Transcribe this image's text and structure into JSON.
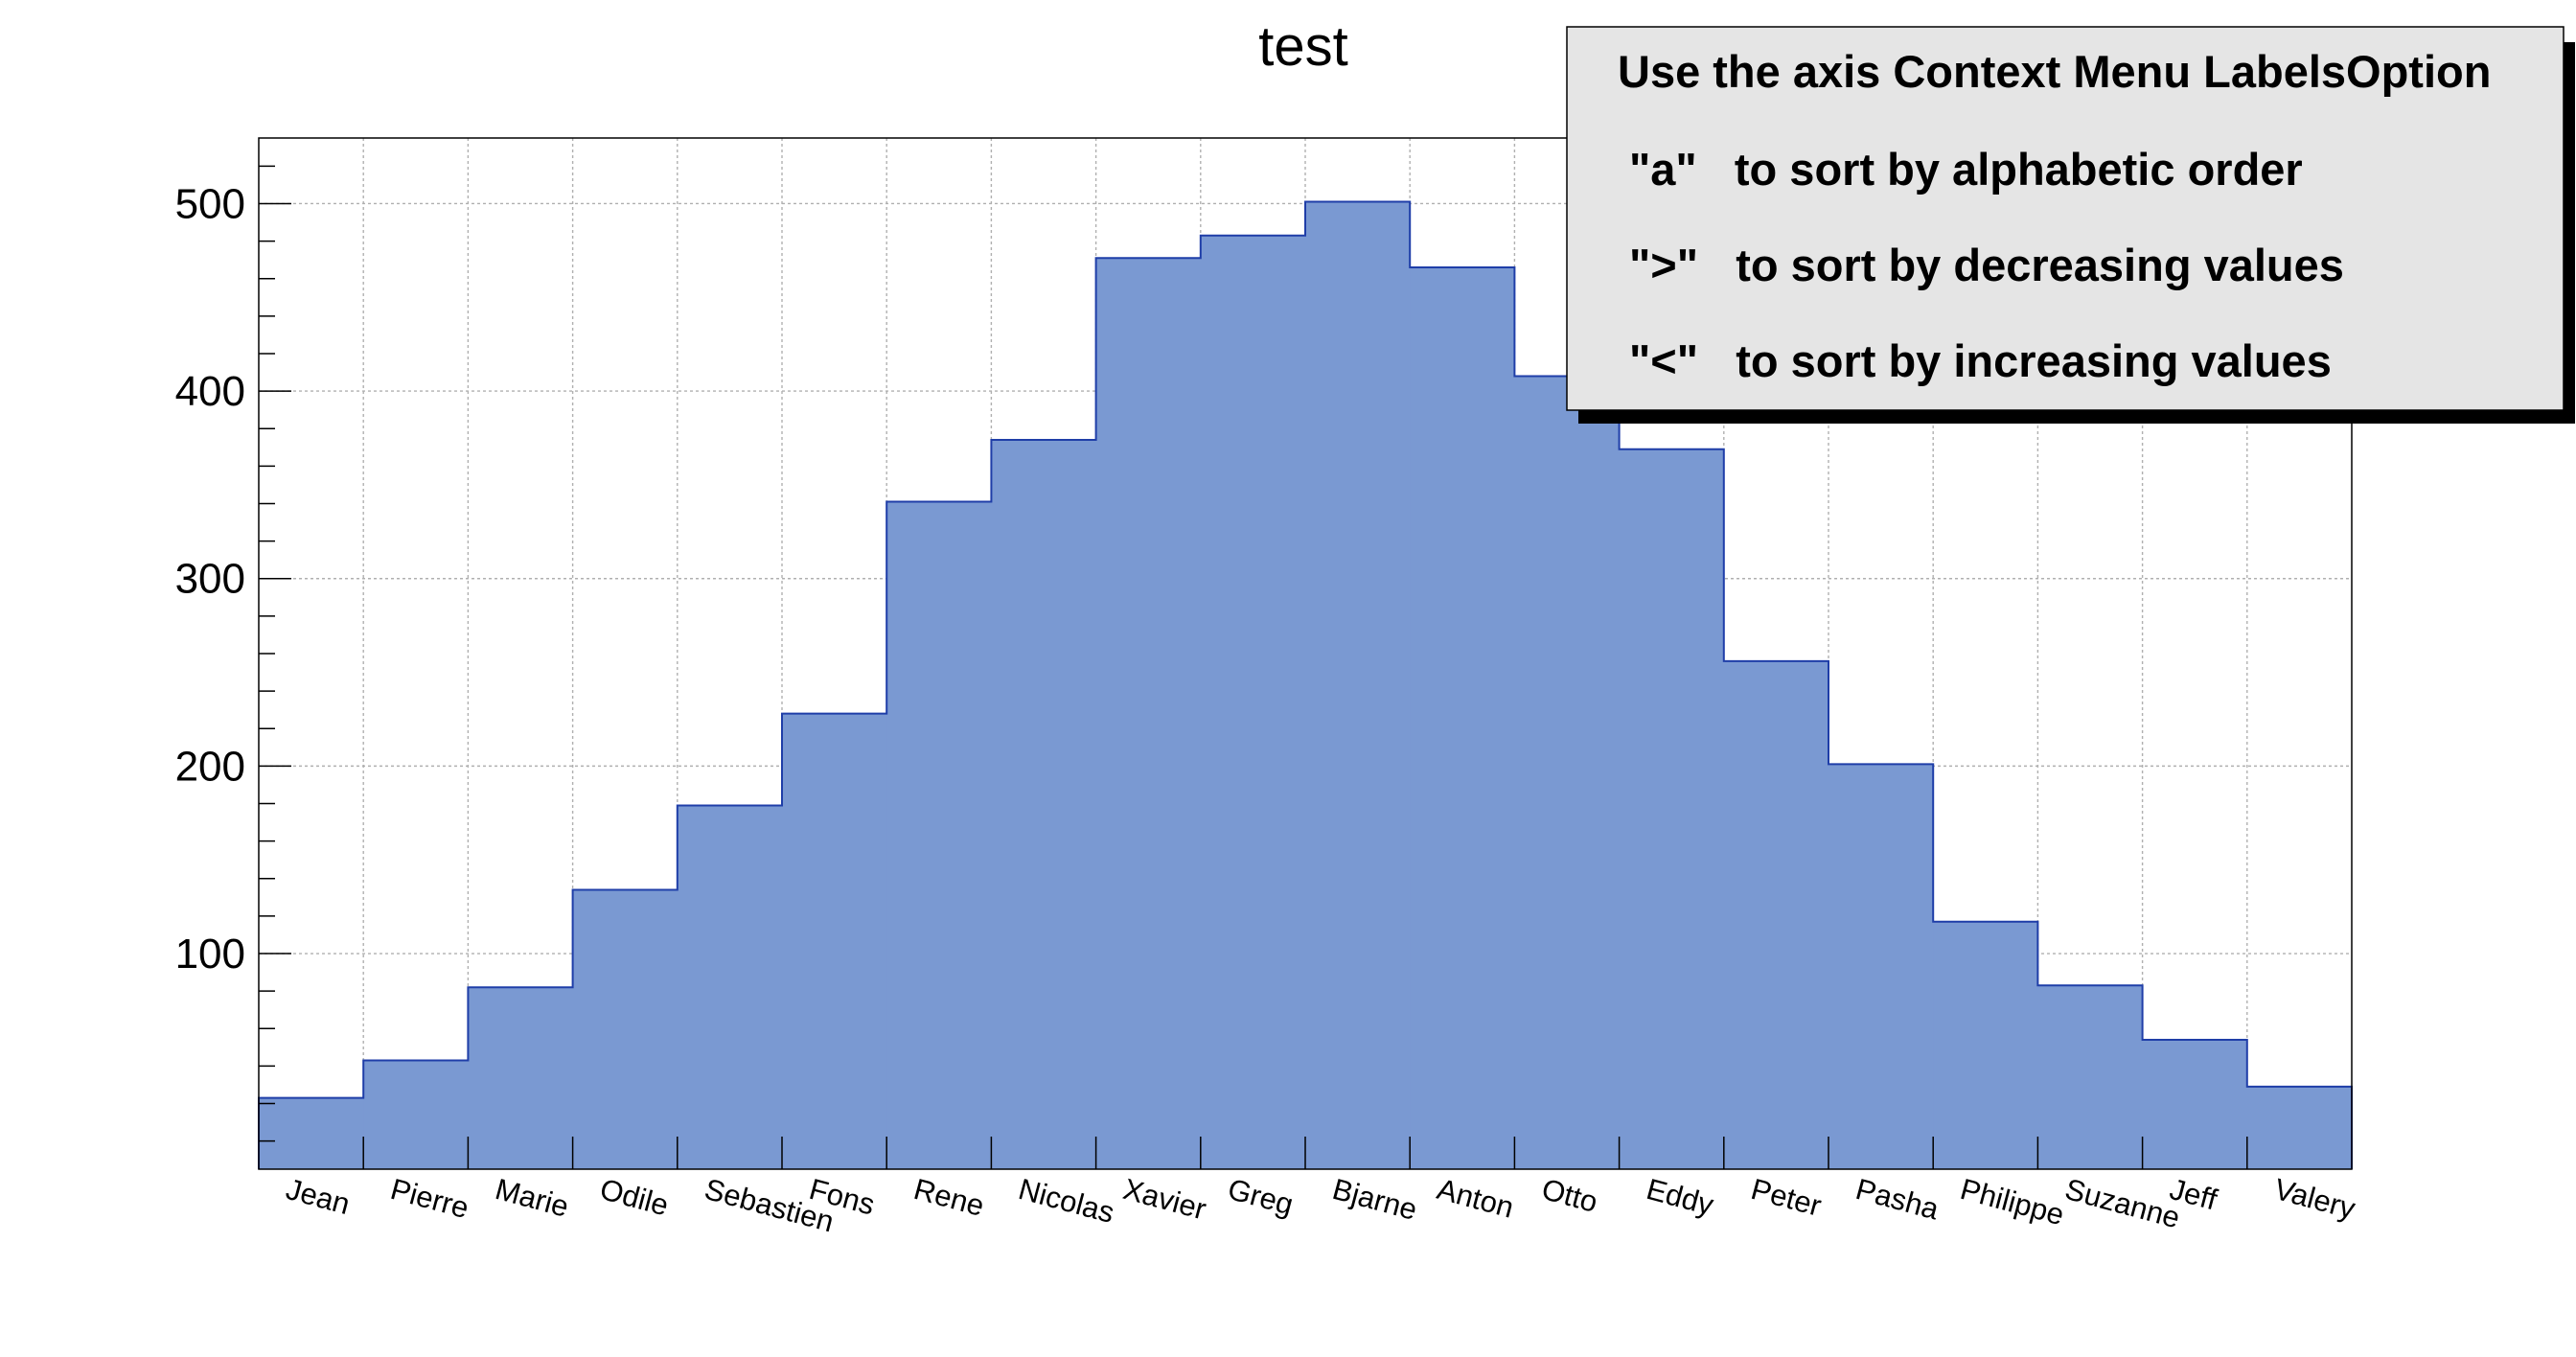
{
  "chart_data": {
    "type": "bar",
    "title": "test",
    "xlabel": "",
    "ylabel": "",
    "categories": [
      "Jean",
      "Pierre",
      "Marie",
      "Odile",
      "Sebastien",
      "Fons",
      "Rene",
      "Nicolas",
      "Xavier",
      "Greg",
      "Bjarne",
      "Anton",
      "Otto",
      "Eddy",
      "Peter",
      "Pasha",
      "Philippe",
      "Suzanne",
      "Jeff",
      "Valery"
    ],
    "values": [
      23,
      43,
      82,
      134,
      179,
      228,
      341,
      374,
      471,
      483,
      501,
      466,
      408,
      369,
      256,
      201,
      117,
      83,
      54,
      29
    ],
    "ylim": [
      -15,
      535
    ],
    "yticks": [
      100,
      200,
      300,
      400,
      500
    ],
    "grid": true,
    "fill_color": "#7a99d2",
    "line_color": "#1f3ea8",
    "histogram_style": "step-filled",
    "legend_position": "top-right"
  },
  "info_box": {
    "lines": [
      "Use the axis Context Menu LabelsOption",
      "\"a\"   to sort by alphabetic order",
      "\">\"   to sort by decreasing values",
      "\"<\"   to sort by increasing values"
    ]
  }
}
